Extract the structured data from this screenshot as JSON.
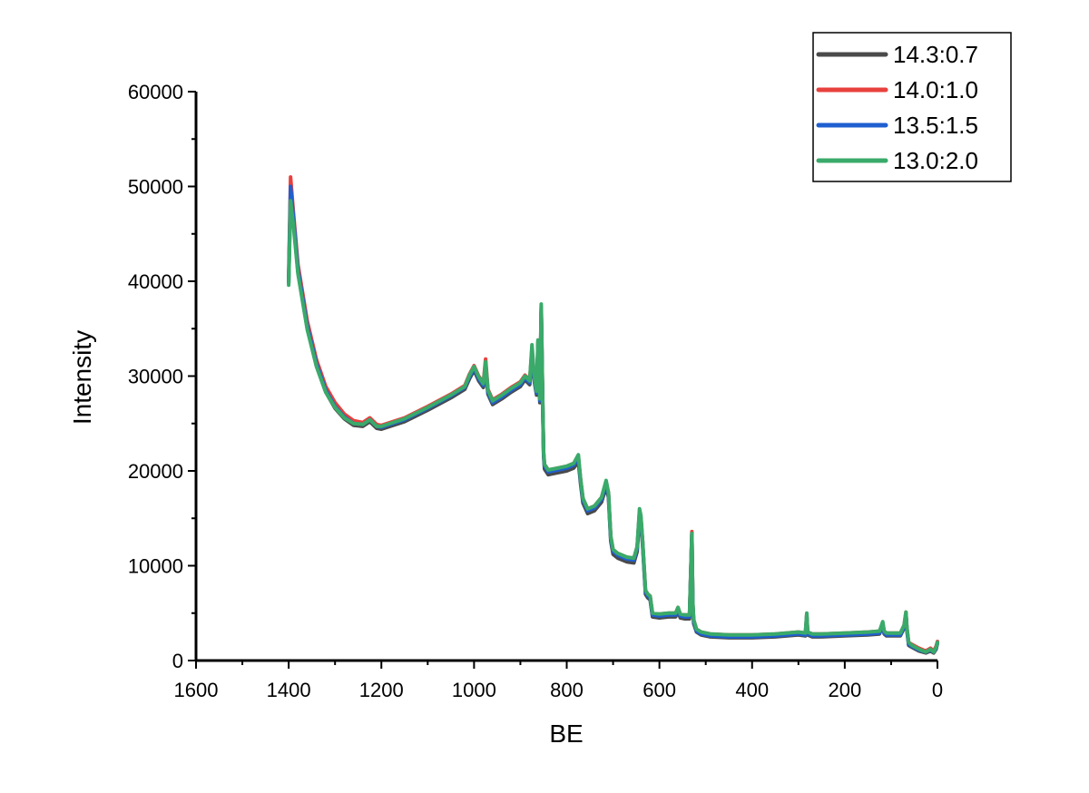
{
  "chart_data": {
    "type": "line",
    "title": "",
    "xlabel": "BE",
    "ylabel": "Intensity",
    "xlim": [
      1600,
      0
    ],
    "ylim": [
      0,
      60000
    ],
    "x_reversed": true,
    "x_ticks": [
      1600,
      1400,
      1200,
      1000,
      800,
      600,
      400,
      200,
      0
    ],
    "y_ticks": [
      0,
      10000,
      20000,
      30000,
      40000,
      50000,
      60000
    ],
    "grid": false,
    "legend_position": "top-right",
    "x": [
      1400,
      1396,
      1390,
      1380,
      1360,
      1340,
      1320,
      1300,
      1280,
      1260,
      1240,
      1225,
      1210,
      1200,
      1150,
      1100,
      1050,
      1020,
      1010,
      1000,
      990,
      980,
      975,
      970,
      960,
      940,
      920,
      900,
      890,
      880,
      875,
      870,
      865,
      862,
      858,
      855,
      852,
      850,
      848,
      840,
      820,
      800,
      785,
      775,
      770,
      765,
      755,
      740,
      725,
      715,
      710,
      705,
      700,
      690,
      670,
      655,
      648,
      643,
      640,
      636,
      630,
      625,
      620,
      615,
      600,
      580,
      565,
      560,
      555,
      545,
      535,
      530,
      528,
      526,
      520,
      510,
      490,
      450,
      400,
      350,
      300,
      285,
      282,
      280,
      270,
      250,
      200,
      150,
      125,
      118,
      115,
      110,
      100,
      80,
      72,
      68,
      66,
      62,
      55,
      40,
      25,
      15,
      8,
      3,
      0
    ],
    "series": [
      {
        "name": "14.3:0.7",
        "color": "#4a4a4a",
        "values": [
          39800,
          49500,
          46500,
          41000,
          35000,
          31000,
          28300,
          26600,
          25500,
          24800,
          24700,
          25200,
          24500,
          24400,
          25200,
          26400,
          27700,
          28600,
          29700,
          30600,
          29500,
          28800,
          30800,
          28100,
          27000,
          27600,
          28300,
          28900,
          29600,
          29100,
          32000,
          29400,
          28000,
          33000,
          27200,
          36800,
          27500,
          21600,
          20200,
          19600,
          19800,
          20000,
          20300,
          21000,
          18600,
          16600,
          15500,
          15800,
          16700,
          18300,
          17200,
          12600,
          11200,
          10800,
          10400,
          10300,
          11500,
          15200,
          14600,
          12000,
          7000,
          6600,
          6400,
          4600,
          4500,
          4600,
          4600,
          5200,
          4500,
          4400,
          4400,
          13200,
          5800,
          3900,
          3000,
          2700,
          2500,
          2400,
          2400,
          2500,
          2700,
          2600,
          4600,
          2700,
          2500,
          2500,
          2600,
          2700,
          2800,
          3700,
          2800,
          2600,
          2600,
          2600,
          3400,
          4800,
          3200,
          1600,
          1400,
          1000,
          800,
          1000,
          800,
          1200,
          1800
        ]
      },
      {
        "name": "14.0:1.0",
        "color": "#e8413d",
        "values": [
          40500,
          51000,
          47400,
          41800,
          35800,
          31700,
          28900,
          27200,
          26000,
          25300,
          25100,
          25600,
          24900,
          24800,
          25600,
          26800,
          28100,
          29000,
          30200,
          31100,
          30000,
          29300,
          31800,
          28600,
          27500,
          28100,
          28800,
          29400,
          30100,
          29600,
          32800,
          29900,
          28500,
          33600,
          27800,
          37300,
          28100,
          22000,
          20700,
          20100,
          20300,
          20500,
          20800,
          21500,
          19100,
          17100,
          16000,
          16300,
          17200,
          18800,
          17700,
          13100,
          11700,
          11300,
          10900,
          10800,
          12000,
          15700,
          15100,
          12500,
          7400,
          7000,
          6800,
          5000,
          4900,
          5000,
          5000,
          5600,
          4900,
          4800,
          4800,
          13600,
          6200,
          4300,
          3300,
          3000,
          2800,
          2700,
          2700,
          2800,
          3000,
          2900,
          4900,
          3000,
          2800,
          2800,
          2900,
          3000,
          3100,
          4000,
          3100,
          2900,
          2900,
          2900,
          3700,
          5100,
          3500,
          1900,
          1700,
          1300,
          1000,
          1300,
          1000,
          1500,
          2000
        ]
      },
      {
        "name": "13.5:1.5",
        "color": "#1f5fcf",
        "values": [
          40000,
          50000,
          46900,
          41300,
          35300,
          31300,
          28500,
          26800,
          25700,
          25000,
          24900,
          25400,
          24700,
          24600,
          25400,
          26600,
          27900,
          28800,
          29900,
          30800,
          29700,
          29000,
          31200,
          28300,
          27200,
          27800,
          28500,
          29100,
          29800,
          29300,
          32300,
          29600,
          28200,
          33300,
          27400,
          37000,
          27800,
          21800,
          20500,
          19900,
          20100,
          20300,
          20600,
          21300,
          18900,
          16900,
          15800,
          16100,
          17000,
          18600,
          17500,
          12900,
          11500,
          11100,
          10700,
          10600,
          11800,
          15500,
          14900,
          12300,
          7200,
          6800,
          6600,
          4800,
          4700,
          4800,
          4800,
          5400,
          4700,
          4600,
          4600,
          13400,
          6000,
          4100,
          3100,
          2800,
          2600,
          2500,
          2500,
          2600,
          2800,
          2700,
          4700,
          2800,
          2600,
          2600,
          2700,
          2800,
          2900,
          3800,
          2900,
          2700,
          2700,
          2700,
          3500,
          4900,
          3300,
          1700,
          1500,
          1100,
          900,
          1100,
          900,
          1300,
          1900
        ]
      },
      {
        "name": "13.0:2.0",
        "color": "#3aaa6a",
        "values": [
          39600,
          48500,
          46000,
          40800,
          34900,
          31000,
          28300,
          26700,
          25600,
          25000,
          24900,
          25400,
          24700,
          24700,
          25500,
          26700,
          28000,
          28900,
          30100,
          31000,
          29900,
          29200,
          31500,
          28500,
          27400,
          28000,
          28700,
          29300,
          30000,
          29500,
          33300,
          29800,
          28400,
          33800,
          27600,
          37600,
          28000,
          22000,
          20700,
          20100,
          20300,
          20500,
          20800,
          21700,
          19100,
          17100,
          16000,
          16300,
          17200,
          19000,
          17700,
          13100,
          11700,
          11300,
          10900,
          10800,
          12000,
          16000,
          15300,
          12500,
          7400,
          7000,
          6800,
          5000,
          4900,
          5000,
          5000,
          5600,
          4900,
          4800,
          4800,
          13400,
          6200,
          4300,
          3300,
          3000,
          2800,
          2700,
          2700,
          2800,
          3000,
          2900,
          5000,
          3000,
          2800,
          2800,
          2900,
          3000,
          3100,
          4100,
          3100,
          2900,
          2900,
          2900,
          3700,
          5100,
          3500,
          1900,
          1600,
          1200,
          900,
          1200,
          900,
          1400,
          1900
        ]
      }
    ]
  }
}
